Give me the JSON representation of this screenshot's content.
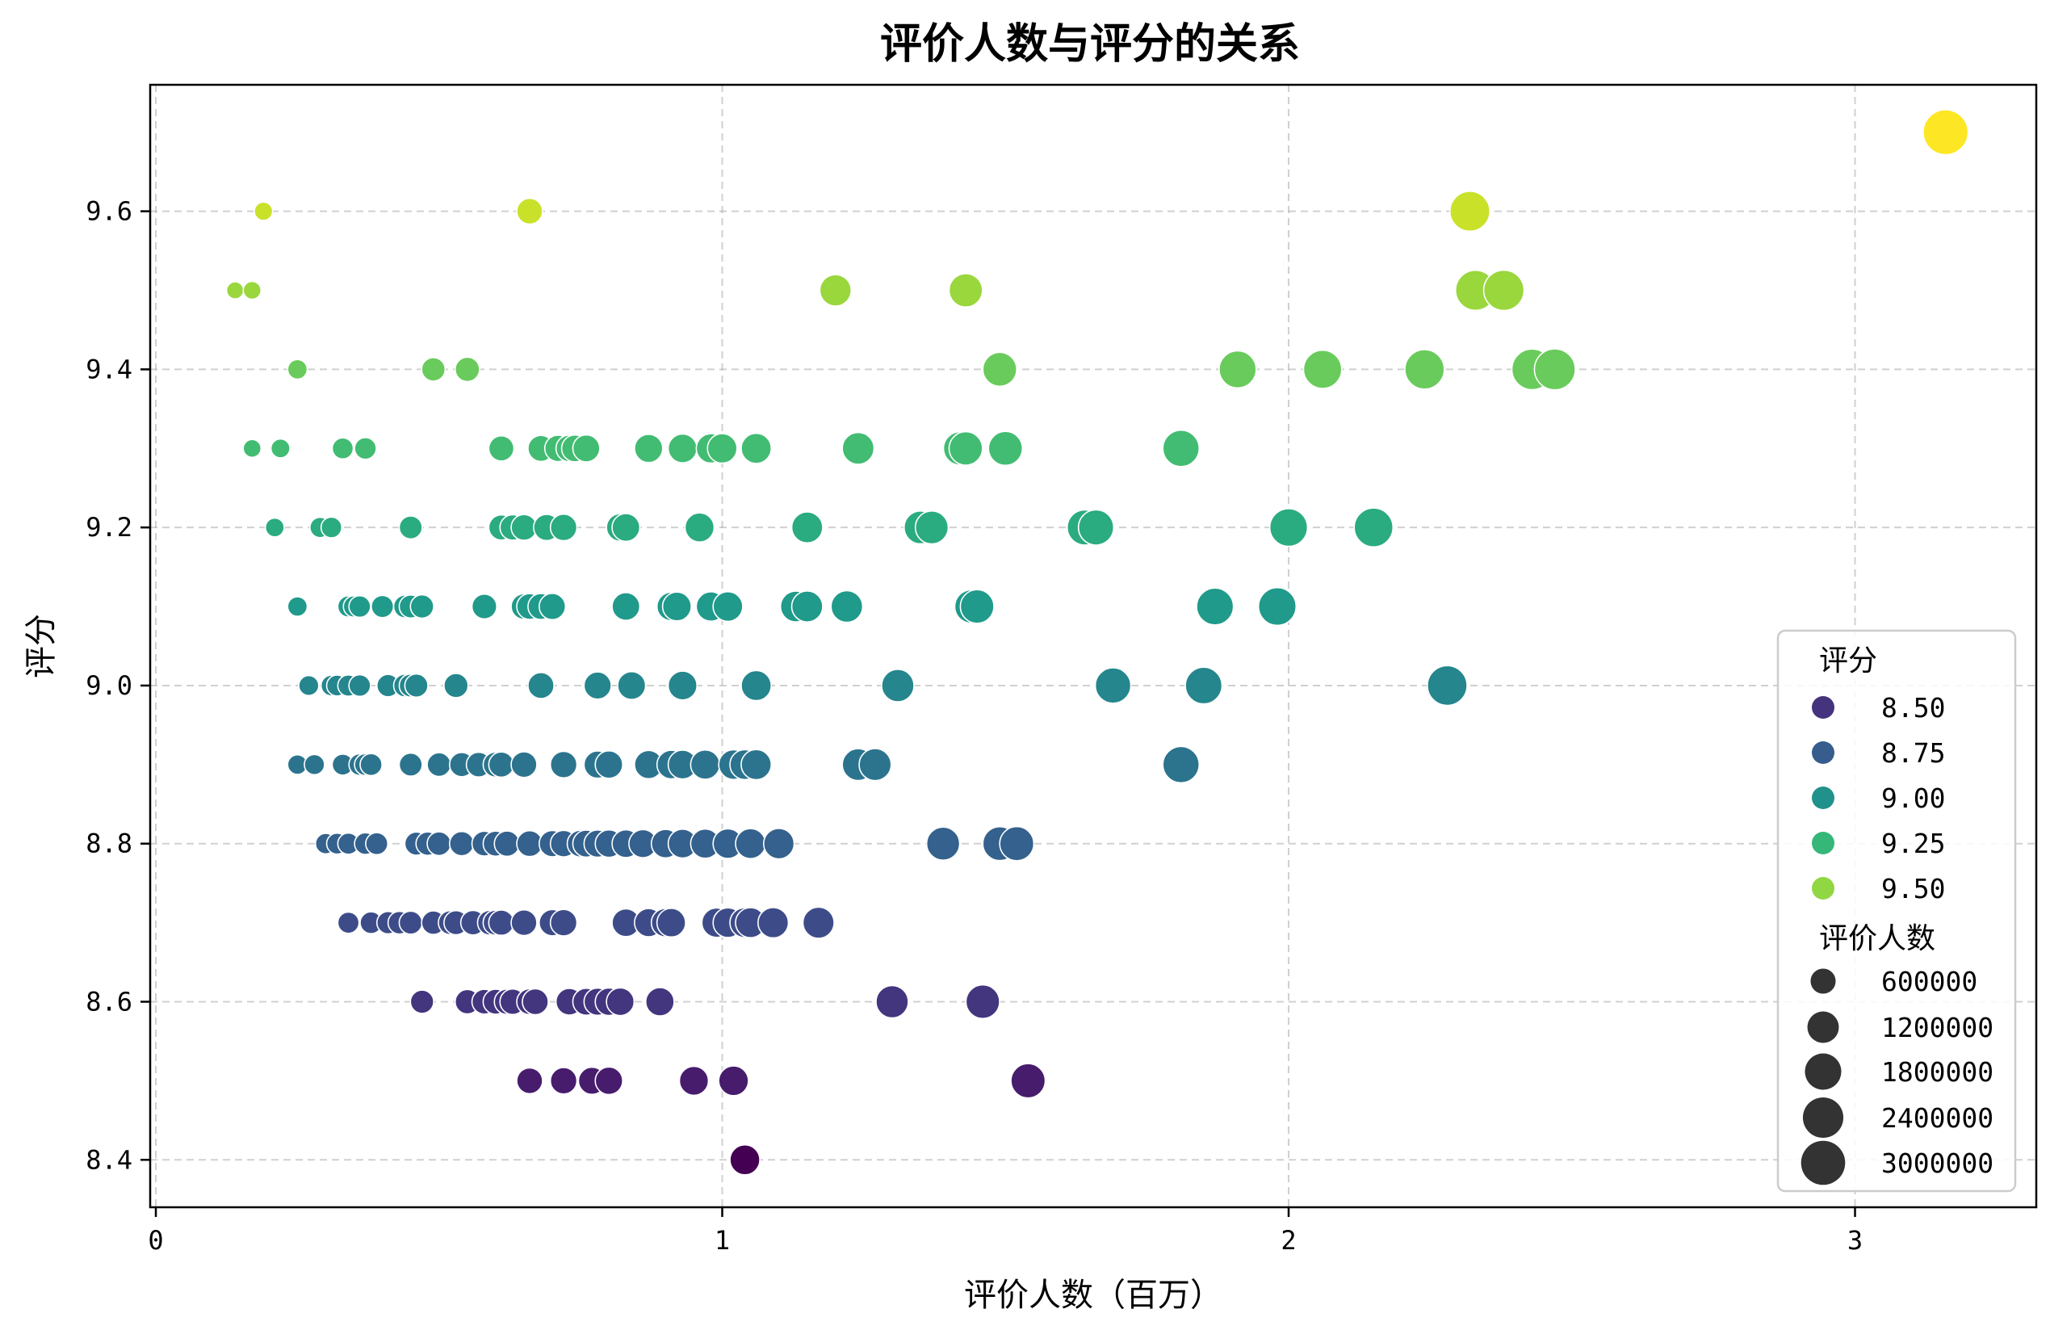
{
  "chart_data": {
    "type": "scatter",
    "title": "评价人数与评分的关系",
    "xlabel": "评价人数（百万）",
    "ylabel": "评分",
    "xlim": [
      -0.01,
      3.32
    ],
    "ylim": [
      8.34,
      9.76
    ],
    "xticks": [
      0,
      1,
      2,
      3
    ],
    "xtick_labels": [
      "0",
      "1",
      "2",
      "3"
    ],
    "yticks": [
      8.4,
      8.6,
      8.8,
      9.0,
      9.2,
      9.4,
      9.6
    ],
    "ytick_labels": [
      "8.4",
      "8.6",
      "8.8",
      "9.0",
      "9.2",
      "9.4",
      "9.6"
    ],
    "grid": true,
    "colormap": "viridis",
    "color_range": [
      8.4,
      9.7
    ],
    "legend": {
      "placement": "lower-right",
      "hue_title": "评分",
      "hue_entries": [
        {
          "label": "8.50",
          "value": 8.5,
          "color": "#46337e"
        },
        {
          "label": "8.75",
          "value": 8.75,
          "color": "#365d8d"
        },
        {
          "label": "9.00",
          "value": 9.0,
          "color": "#21918c"
        },
        {
          "label": "9.25",
          "value": 9.25,
          "color": "#35b779"
        },
        {
          "label": "9.50",
          "value": 9.5,
          "color": "#90d743"
        }
      ],
      "size_title": "评价人数",
      "size_entries": [
        {
          "label": "600000",
          "value": 600000
        },
        {
          "label": "1200000",
          "value": 1200000
        },
        {
          "label": "1800000",
          "value": 1800000
        },
        {
          "label": "2400000",
          "value": 2400000
        },
        {
          "label": "3000000",
          "value": 3000000
        }
      ]
    },
    "points": [
      {
        "y": 9.7,
        "x": [
          3.16
        ]
      },
      {
        "y": 9.6,
        "x": [
          0.19,
          0.66,
          2.32
        ]
      },
      {
        "y": 9.5,
        "x": [
          0.14,
          0.17,
          1.2,
          1.43,
          2.33,
          2.38
        ]
      },
      {
        "y": 9.4,
        "x": [
          0.25,
          0.49,
          0.55,
          1.49,
          1.91,
          2.06,
          2.24,
          2.43,
          2.47
        ]
      },
      {
        "y": 9.3,
        "x": [
          0.17,
          0.22,
          0.33,
          0.37,
          0.61,
          0.68,
          0.71,
          0.73,
          0.74,
          0.76,
          0.87,
          0.93,
          0.98,
          1.0,
          1.06,
          1.24,
          1.42,
          1.43,
          1.5,
          1.81
        ]
      },
      {
        "y": 9.2,
        "x": [
          0.21,
          0.29,
          0.31,
          0.45,
          0.61,
          0.63,
          0.65,
          0.69,
          0.72,
          0.82,
          0.83,
          0.96,
          1.15,
          1.35,
          1.37,
          1.64,
          1.66,
          2.0,
          2.15
        ]
      },
      {
        "y": 9.1,
        "x": [
          0.25,
          0.34,
          0.35,
          0.36,
          0.4,
          0.44,
          0.45,
          0.47,
          0.58,
          0.65,
          0.66,
          0.68,
          0.7,
          0.83,
          0.91,
          0.92,
          0.98,
          1.01,
          1.13,
          1.15,
          1.22,
          1.44,
          1.45,
          1.87,
          1.98
        ]
      },
      {
        "y": 9.0,
        "x": [
          0.27,
          0.31,
          0.32,
          0.34,
          0.36,
          0.41,
          0.44,
          0.45,
          0.46,
          0.53,
          0.68,
          0.78,
          0.84,
          0.93,
          1.06,
          1.31,
          1.69,
          1.85,
          2.28
        ]
      },
      {
        "y": 8.9,
        "x": [
          0.25,
          0.28,
          0.33,
          0.36,
          0.37,
          0.38,
          0.45,
          0.5,
          0.54,
          0.57,
          0.6,
          0.61,
          0.65,
          0.72,
          0.78,
          0.8,
          0.87,
          0.91,
          0.93,
          0.97,
          1.02,
          1.04,
          1.06,
          1.24,
          1.27,
          1.81
        ]
      },
      {
        "y": 8.8,
        "x": [
          0.3,
          0.32,
          0.34,
          0.37,
          0.39,
          0.46,
          0.48,
          0.5,
          0.54,
          0.58,
          0.6,
          0.62,
          0.66,
          0.7,
          0.72,
          0.75,
          0.76,
          0.78,
          0.8,
          0.83,
          0.86,
          0.9,
          0.93,
          0.97,
          1.01,
          1.05,
          1.1,
          1.39,
          1.49,
          1.52
        ]
      },
      {
        "y": 8.7,
        "x": [
          0.34,
          0.38,
          0.41,
          0.43,
          0.45,
          0.49,
          0.52,
          0.53,
          0.56,
          0.59,
          0.6,
          0.61,
          0.65,
          0.7,
          0.72,
          0.83,
          0.87,
          0.9,
          0.91,
          0.99,
          1.01,
          1.04,
          1.05,
          1.09,
          1.17
        ]
      },
      {
        "y": 8.6,
        "x": [
          0.47,
          0.55,
          0.58,
          0.6,
          0.62,
          0.63,
          0.66,
          0.67,
          0.73,
          0.76,
          0.78,
          0.8,
          0.82,
          0.89,
          1.3,
          1.46
        ]
      },
      {
        "y": 8.5,
        "x": [
          0.66,
          0.72,
          0.77,
          0.8,
          0.95,
          1.02,
          1.54
        ]
      },
      {
        "y": 8.4,
        "x": [
          1.04
        ]
      }
    ]
  }
}
